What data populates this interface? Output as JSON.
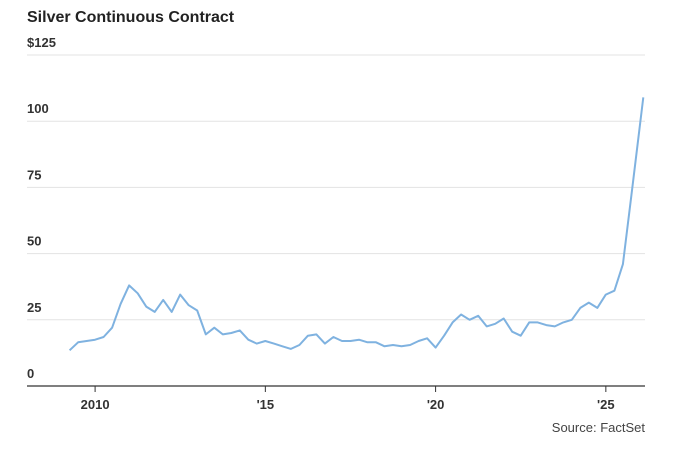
{
  "chart_data": {
    "type": "line",
    "title": "Silver Continuous Contract",
    "source": "Source: FactSet",
    "x": [
      2009.25,
      2009.5,
      2009.75,
      2010.0,
      2010.25,
      2010.5,
      2010.75,
      2011.0,
      2011.25,
      2011.5,
      2011.75,
      2012.0,
      2012.25,
      2012.5,
      2012.75,
      2013.0,
      2013.25,
      2013.5,
      2013.75,
      2014.0,
      2014.25,
      2014.5,
      2014.75,
      2015.0,
      2015.25,
      2015.5,
      2015.75,
      2016.0,
      2016.25,
      2016.5,
      2016.75,
      2017.0,
      2017.25,
      2017.5,
      2017.75,
      2018.0,
      2018.25,
      2018.5,
      2018.75,
      2019.0,
      2019.25,
      2019.5,
      2019.75,
      2020.0,
      2020.25,
      2020.5,
      2020.75,
      2021.0,
      2021.25,
      2021.5,
      2021.75,
      2022.0,
      2022.25,
      2022.5,
      2022.75,
      2023.0,
      2023.25,
      2023.5,
      2023.75,
      2024.0,
      2024.25,
      2024.5,
      2024.75,
      2025.0,
      2025.25,
      2025.5,
      2025.75,
      2026.1
    ],
    "series": [
      {
        "color": "#7fb2e0",
        "values": [
          13.5,
          16.5,
          17,
          17.5,
          18.5,
          22,
          31,
          38,
          35,
          30,
          28,
          32.5,
          28,
          34.5,
          30.5,
          28.5,
          19.5,
          22,
          19.5,
          20,
          21,
          17.5,
          16,
          17,
          16,
          15,
          14,
          15.5,
          19,
          19.5,
          16,
          18.5,
          17,
          17,
          17.5,
          16.5,
          16.5,
          15,
          15.5,
          15,
          15.5,
          17,
          18,
          14.5,
          19,
          24,
          27,
          25,
          26.5,
          22.5,
          23.5,
          25.5,
          20.5,
          19,
          24,
          24,
          23,
          22.5,
          24,
          25,
          29.5,
          31.5,
          29.5,
          34.5,
          36,
          46,
          72,
          109
        ]
      }
    ],
    "xlim": [
      2008.0,
      2026.15
    ],
    "ylim": [
      0,
      125
    ],
    "xticks": [
      2010,
      {
        "value": 2015,
        "label": "'15"
      },
      {
        "value": 2020,
        "label": "'20"
      },
      {
        "value": 2025,
        "label": "'25"
      }
    ],
    "yticks": [
      0,
      25,
      50,
      75,
      100,
      {
        "value": 125,
        "label": "$125"
      }
    ],
    "grid": true
  }
}
